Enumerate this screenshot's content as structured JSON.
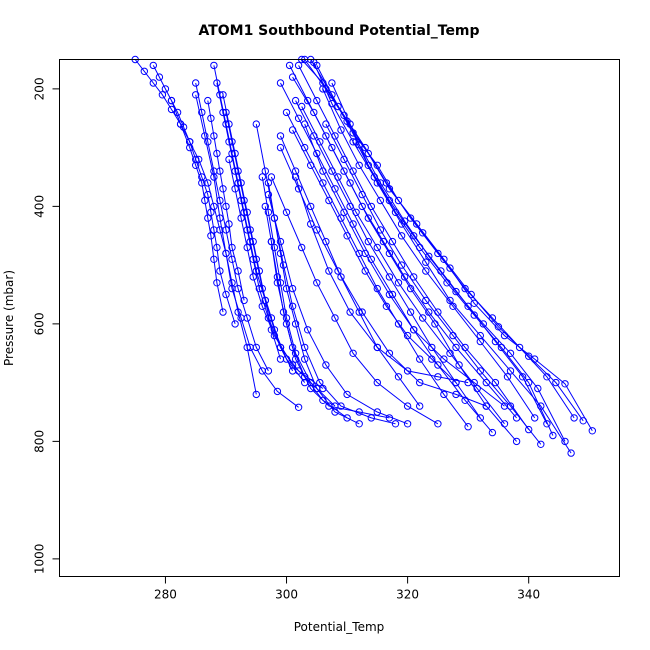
{
  "chart_data": {
    "type": "line",
    "title": "ATOM1 Southbound Potential_Temp",
    "xlabel": "Potential_Temp",
    "ylabel": "Pressure (mbar)",
    "xlim": [
      262.5,
      355
    ],
    "ylim": [
      1030,
      150
    ],
    "y_inverted": true,
    "x_ticks": [
      280,
      300,
      320,
      340
    ],
    "y_ticks": [
      200,
      400,
      600,
      800,
      1000
    ],
    "grid": false,
    "color": "#0000ff",
    "marker": "open-circle",
    "series": [
      {
        "x": [
          350.5,
          346,
          341,
          336,
          331,
          327,
          322.5,
          318.5,
          315,
          311,
          307.5,
          304
        ],
        "y": [
          782,
          702,
          660,
          620,
          565,
          505,
          445,
          390,
          330,
          275,
          210,
          150
        ]
      },
      {
        "x": [
          349,
          344.5,
          340,
          335,
          330.5,
          326,
          321.5,
          317,
          313.5,
          310,
          306.5,
          303
        ],
        "y": [
          765,
          700,
          655,
          605,
          550,
          490,
          430,
          370,
          310,
          255,
          200,
          150
        ]
      },
      {
        "x": [
          347.5,
          343,
          338.5,
          334,
          329.5,
          325,
          320.5,
          316.5,
          313,
          309.5,
          306,
          302.5
        ],
        "y": [
          760,
          690,
          640,
          590,
          540,
          480,
          420,
          360,
          300,
          245,
          190,
          150
        ]
      },
      {
        "x": [
          346,
          341.5,
          337,
          332.5,
          328,
          323.5,
          319.5,
          315.5,
          312,
          308.5,
          305
        ],
        "y": [
          800,
          710,
          650,
          600,
          545,
          485,
          425,
          360,
          295,
          230,
          160
        ]
      },
      {
        "x": [
          344,
          340,
          335.5,
          331,
          326.5,
          322,
          318,
          314.5,
          311,
          307.5,
          304.5
        ],
        "y": [
          790,
          700,
          640,
          585,
          530,
          470,
          410,
          350,
          290,
          225,
          155
        ]
      },
      {
        "x": [
          347,
          342,
          337,
          332,
          327,
          323,
          319,
          315,
          311.5
        ],
        "y": [
          820,
          740,
          680,
          620,
          560,
          495,
          430,
          360,
          290
        ]
      },
      {
        "x": [
          343,
          339,
          334.5,
          330,
          325.5,
          321,
          317,
          313.5,
          310.5,
          307.5
        ],
        "y": [
          770,
          690,
          630,
          570,
          510,
          450,
          390,
          330,
          260,
          190
        ]
      },
      {
        "x": [
          341,
          336.5,
          332,
          327.5,
          323,
          319,
          315.5,
          312,
          309,
          306
        ],
        "y": [
          760,
          690,
          630,
          570,
          510,
          450,
          390,
          330,
          270,
          200
        ]
      },
      {
        "x": [
          342,
          337,
          332,
          327.5,
          323,
          319,
          315.5,
          312.5,
          309.5,
          306.5
        ],
        "y": [
          805,
          740,
          680,
          620,
          560,
          500,
          440,
          380,
          320,
          260
        ]
      },
      {
        "x": [
          340,
          334.5,
          329.5,
          325,
          321,
          317.5,
          314,
          311,
          308,
          305,
          302
        ],
        "y": [
          780,
          700,
          640,
          580,
          520,
          460,
          400,
          340,
          280,
          220,
          160
        ]
      },
      {
        "x": [
          338,
          333,
          328.5,
          324.5,
          320.5,
          317,
          313.5,
          310.5,
          307.5,
          304.5,
          301
        ],
        "y": [
          800,
          740,
          670,
          600,
          540,
          480,
          420,
          360,
          300,
          240,
          180
        ]
      },
      {
        "x": [
          336,
          331.5,
          327,
          322.5,
          318.5,
          315,
          311.5,
          308.5,
          305.5,
          302.5
        ],
        "y": [
          770,
          710,
          650,
          590,
          530,
          470,
          410,
          350,
          290,
          230
        ]
      },
      {
        "x": [
          338,
          333,
          328,
          323.5,
          319.5,
          316,
          312.5,
          309.5,
          306.5,
          303.5,
          300.5
        ],
        "y": [
          760,
          700,
          640,
          580,
          520,
          460,
          400,
          340,
          280,
          220,
          160
        ]
      },
      {
        "x": [
          334,
          329.5,
          325,
          321,
          317.5,
          314,
          311,
          308,
          305,
          302,
          299
        ],
        "y": [
          785,
          730,
          670,
          610,
          550,
          490,
          430,
          370,
          310,
          250,
          190
        ]
      },
      {
        "x": [
          330,
          326,
          322,
          318.5,
          315,
          312,
          309,
          306,
          303,
          300
        ],
        "y": [
          775,
          720,
          660,
          600,
          540,
          480,
          420,
          360,
          300,
          240
        ]
      },
      {
        "x": [
          332,
          328,
          324,
          320.5,
          317,
          313.5,
          310.5,
          307.5,
          304.5,
          301.5
        ],
        "y": [
          760,
          700,
          640,
          580,
          520,
          460,
          400,
          340,
          280,
          220
        ]
      },
      {
        "x": [
          336,
          331,
          326,
          321,
          317,
          313,
          309.5,
          306,
          303
        ],
        "y": [
          740,
          700,
          660,
          610,
          550,
          480,
          410,
          340,
          260
        ]
      },
      {
        "x": [
          333,
          328,
          322,
          317,
          312.5,
          308.5,
          305,
          302,
          299
        ],
        "y": [
          740,
          720,
          700,
          650,
          580,
          510,
          440,
          370,
          300
        ]
      },
      {
        "x": [
          330,
          325,
          320,
          315,
          310.5,
          307,
          304,
          301.5
        ],
        "y": [
          700,
          690,
          680,
          640,
          580,
          510,
          430,
          350
        ]
      },
      {
        "x": [
          328,
          324,
          320,
          316.5,
          313,
          310,
          307,
          304,
          301
        ],
        "y": [
          700,
          660,
          620,
          570,
          510,
          450,
          390,
          330,
          270
        ]
      },
      {
        "x": [
          322,
          318.5,
          315,
          312,
          309,
          306.5,
          304,
          301.5,
          299
        ],
        "y": [
          740,
          690,
          640,
          580,
          520,
          460,
          400,
          340,
          280
        ]
      },
      {
        "x": [
          325,
          320,
          315,
          311,
          308,
          305,
          302.5,
          300,
          297.5
        ],
        "y": [
          770,
          740,
          700,
          650,
          590,
          530,
          470,
          410,
          350
        ]
      },
      {
        "x": [
          320,
          315,
          310,
          306.5,
          303.5,
          301,
          299,
          297
        ],
        "y": [
          770,
          750,
          720,
          670,
          610,
          540,
          460,
          380
        ]
      },
      {
        "x": [
          318,
          314,
          309,
          305.5,
          303,
          301,
          299.5,
          298,
          296.5,
          295
        ],
        "y": [
          770,
          760,
          740,
          700,
          640,
          570,
          500,
          420,
          340,
          260
        ]
      },
      {
        "x": [
          317,
          312,
          307,
          304,
          301.5,
          300,
          298.5,
          297.5
        ],
        "y": [
          760,
          750,
          740,
          710,
          660,
          600,
          530,
          460
        ]
      },
      {
        "x": [
          312,
          308,
          305,
          303,
          301.5,
          300,
          299,
          298,
          297
        ],
        "y": [
          770,
          750,
          710,
          660,
          600,
          540,
          480,
          420,
          360
        ]
      },
      {
        "x": [
          310,
          306,
          303,
          301,
          299.5,
          298.5,
          297.5,
          296.5
        ],
        "y": [
          760,
          730,
          690,
          640,
          580,
          520,
          460,
          400
        ]
      },
      {
        "x": [
          308,
          304,
          301.5,
          300,
          299,
          298,
          297,
          296
        ],
        "y": [
          740,
          700,
          650,
          590,
          530,
          470,
          410,
          350
        ]
      },
      {
        "x": [
          302,
          298.5,
          296,
          294,
          292.5,
          291,
          290,
          289,
          288,
          286.5,
          285
        ],
        "y": [
          742,
          715,
          680,
          640,
          590,
          540,
          480,
          420,
          350,
          280,
          210
        ]
      },
      {
        "x": [
          306,
          302,
          299,
          297,
          295.5,
          294.5,
          293.5,
          292.5,
          291.5,
          290.5,
          289.5,
          288.5
        ],
        "y": [
          710,
          680,
          640,
          590,
          540,
          490,
          440,
          390,
          340,
          290,
          240,
          190
        ]
      },
      {
        "x": [
          305,
          301,
          298,
          296,
          294.5,
          293.5,
          292.5,
          291.5,
          290.5
        ],
        "y": [
          710,
          670,
          620,
          570,
          520,
          470,
          420,
          370,
          320
        ]
      },
      {
        "x": [
          297,
          295,
          293.5,
          292,
          291,
          290,
          289,
          288,
          287,
          286,
          285
        ],
        "y": [
          680,
          640,
          590,
          540,
          490,
          440,
          390,
          340,
          290,
          240,
          190
        ]
      },
      {
        "x": [
          299,
          297.5,
          296.5,
          295.5,
          294.5,
          293.5,
          292.5,
          291.5,
          290.5,
          289.5
        ],
        "y": [
          660,
          610,
          560,
          510,
          460,
          410,
          360,
          310,
          260,
          210
        ]
      },
      {
        "x": [
          303,
          300,
          298,
          296.5,
          295,
          294,
          293,
          292,
          291,
          290,
          289,
          288
        ],
        "y": [
          700,
          660,
          610,
          560,
          510,
          460,
          410,
          360,
          310,
          260,
          210,
          160
        ]
      },
      {
        "x": [
          301,
          299,
          297.5,
          296,
          295,
          294,
          293,
          292,
          291,
          290
        ],
        "y": [
          680,
          640,
          590,
          540,
          490,
          440,
          390,
          340,
          290,
          240
        ]
      },
      {
        "x": [
          295,
          293.5,
          292,
          291,
          290,
          289,
          288,
          287,
          285.5,
          284,
          282.5,
          281,
          279.5,
          278,
          276.5,
          275
        ],
        "y": [
          720,
          640,
          580,
          530,
          480,
          440,
          400,
          360,
          320,
          290,
          260,
          235,
          210,
          190,
          170,
          150
        ]
      },
      {
        "x": [
          291.5,
          290,
          289,
          288.5,
          288,
          287.5,
          287,
          286,
          285,
          284,
          283,
          282,
          281,
          280,
          279,
          278
        ],
        "y": [
          600,
          550,
          510,
          470,
          440,
          410,
          380,
          350,
          320,
          290,
          265,
          240,
          220,
          200,
          180,
          160
        ]
      },
      {
        "x": [
          289.5,
          288.5,
          288,
          287.5,
          287,
          286.5,
          286,
          285,
          284,
          282.5,
          281
        ],
        "y": [
          580,
          530,
          490,
          450,
          420,
          390,
          360,
          330,
          300,
          260,
          220
        ]
      },
      {
        "x": [
          293,
          292,
          291,
          290.5,
          290,
          289.5,
          289,
          288.5,
          288,
          287.5,
          287
        ],
        "y": [
          560,
          510,
          470,
          430,
          400,
          370,
          340,
          310,
          280,
          250,
          220
        ]
      }
    ]
  }
}
